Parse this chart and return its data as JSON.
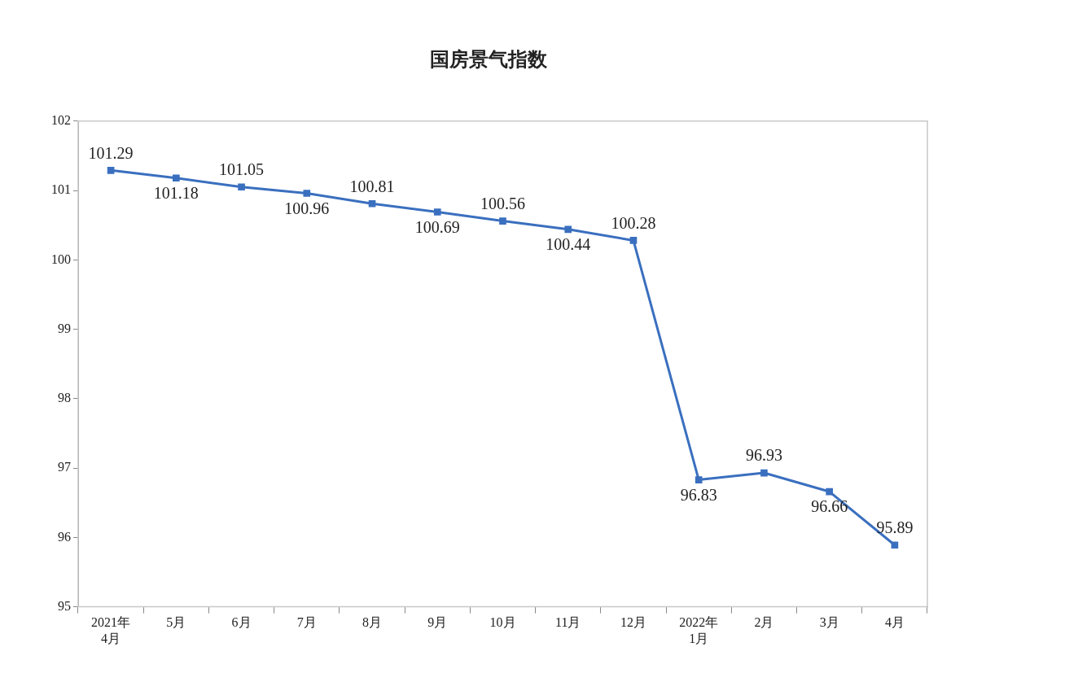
{
  "chart_data": {
    "type": "line",
    "title": "国房景气指数",
    "categories": [
      "2021年\n4月",
      "5月",
      "6月",
      "7月",
      "8月",
      "9月",
      "10月",
      "11月",
      "12月",
      "2022年\n1月",
      "2月",
      "3月",
      "4月"
    ],
    "series": [
      {
        "color": "#3a6fbf",
        "values": [
          101.29,
          101.18,
          101.05,
          100.96,
          100.81,
          100.69,
          100.56,
          100.44,
          100.28,
          96.83,
          96.93,
          96.66,
          95.89
        ]
      }
    ],
    "ylim": [
      95,
      102
    ],
    "yticks": [
      95,
      96,
      97,
      98,
      99,
      100,
      101,
      102
    ],
    "data_labels": true,
    "marker": "square",
    "grid": false,
    "legend": false
  }
}
